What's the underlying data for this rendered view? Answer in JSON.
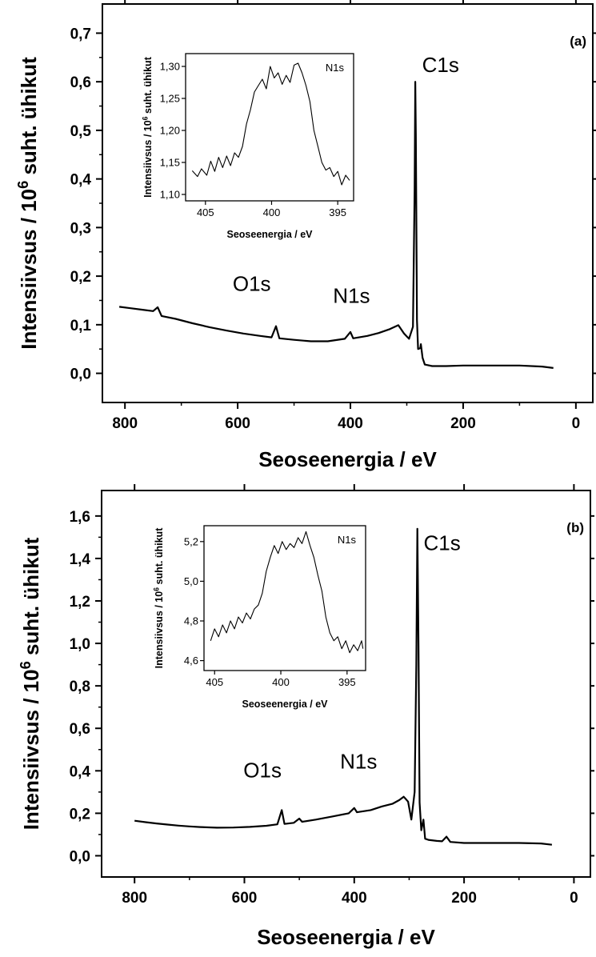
{
  "chart_data": [
    {
      "type": "line",
      "panel_label": "(a)",
      "xlabel": "Seoseenergia / eV",
      "ylabel": {
        "text": "Intensiivsus / 10",
        "sup": "6",
        "tail": " suht. ühikut"
      },
      "xlim": [
        840,
        -30
      ],
      "ylim": [
        -0.06,
        0.76
      ],
      "xticks": [
        800,
        600,
        400,
        200,
        0
      ],
      "xticklabels": [
        "800",
        "600",
        "400",
        "200",
        "0"
      ],
      "yticks": [
        0.0,
        0.1,
        0.2,
        0.3,
        0.4,
        0.5,
        0.6,
        0.7
      ],
      "yticklabels": [
        "0,0",
        "0,1",
        "0,2",
        "0,3",
        "0,4",
        "0,5",
        "0,6",
        "0,7"
      ],
      "annotations": [
        {
          "text": "C1s",
          "x": 240,
          "y": 0.62
        },
        {
          "text": "O1s",
          "x": 575,
          "y": 0.17
        },
        {
          "text": "N1s",
          "x": 398,
          "y": 0.145
        }
      ],
      "series": [
        {
          "points": [
            [
              810,
              0.137
            ],
            [
              790,
              0.134
            ],
            [
              770,
              0.131
            ],
            [
              750,
              0.128
            ],
            [
              742,
              0.136
            ],
            [
              735,
              0.118
            ],
            [
              710,
              0.112
            ],
            [
              680,
              0.103
            ],
            [
              650,
              0.095
            ],
            [
              620,
              0.088
            ],
            [
              590,
              0.082
            ],
            [
              560,
              0.077
            ],
            [
              540,
              0.074
            ],
            [
              532,
              0.097
            ],
            [
              526,
              0.072
            ],
            [
              500,
              0.069
            ],
            [
              470,
              0.066
            ],
            [
              440,
              0.066
            ],
            [
              410,
              0.071
            ],
            [
              400,
              0.085
            ],
            [
              395,
              0.072
            ],
            [
              370,
              0.077
            ],
            [
              350,
              0.083
            ],
            [
              330,
              0.091
            ],
            [
              315,
              0.099
            ],
            [
              305,
              0.082
            ],
            [
              296,
              0.071
            ],
            [
              289,
              0.096
            ],
            [
              286,
              0.38
            ],
            [
              285,
              0.6
            ],
            [
              284,
              0.49
            ],
            [
              282,
              0.11
            ],
            [
              280,
              0.05
            ],
            [
              276,
              0.052
            ],
            [
              275,
              0.06
            ],
            [
              272,
              0.032
            ],
            [
              268,
              0.018
            ],
            [
              255,
              0.015
            ],
            [
              230,
              0.015
            ],
            [
              200,
              0.016
            ],
            [
              150,
              0.016
            ],
            [
              100,
              0.016
            ],
            [
              60,
              0.014
            ],
            [
              40,
              0.011
            ]
          ]
        }
      ],
      "inset": {
        "label": "N1s",
        "xlabel": "Seoseenergia / eV",
        "ylabel": {
          "text": "Intensiivsus / 10",
          "sup": "6",
          "tail": " suht. ühikut"
        },
        "xlim": [
          406.5,
          393.8
        ],
        "ylim": [
          1.09,
          1.32
        ],
        "xticks": [
          405,
          400,
          395
        ],
        "xticklabels": [
          "405",
          "400",
          "395"
        ],
        "yticks": [
          1.1,
          1.15,
          1.2,
          1.25,
          1.3
        ],
        "yticklabels": [
          "1,10",
          "1,15",
          "1,20",
          "1,25",
          "1,30"
        ],
        "points": [
          [
            406,
            1.137
          ],
          [
            405.6,
            1.128
          ],
          [
            405.3,
            1.14
          ],
          [
            404.9,
            1.13
          ],
          [
            404.6,
            1.152
          ],
          [
            404.3,
            1.136
          ],
          [
            404.0,
            1.158
          ],
          [
            403.7,
            1.142
          ],
          [
            403.4,
            1.16
          ],
          [
            403.1,
            1.145
          ],
          [
            402.8,
            1.165
          ],
          [
            402.5,
            1.158
          ],
          [
            402.2,
            1.175
          ],
          [
            401.9,
            1.21
          ],
          [
            401.6,
            1.232
          ],
          [
            401.3,
            1.26
          ],
          [
            401.0,
            1.27
          ],
          [
            400.7,
            1.28
          ],
          [
            400.4,
            1.265
          ],
          [
            400.1,
            1.3
          ],
          [
            399.8,
            1.282
          ],
          [
            399.5,
            1.29
          ],
          [
            399.2,
            1.272
          ],
          [
            398.9,
            1.286
          ],
          [
            398.6,
            1.275
          ],
          [
            398.3,
            1.302
          ],
          [
            398.0,
            1.305
          ],
          [
            397.7,
            1.29
          ],
          [
            397.4,
            1.27
          ],
          [
            397.1,
            1.245
          ],
          [
            396.8,
            1.2
          ],
          [
            396.5,
            1.175
          ],
          [
            396.2,
            1.15
          ],
          [
            395.9,
            1.138
          ],
          [
            395.6,
            1.142
          ],
          [
            395.3,
            1.128
          ],
          [
            395.0,
            1.136
          ],
          [
            394.7,
            1.115
          ],
          [
            394.4,
            1.13
          ],
          [
            394.1,
            1.122
          ]
        ]
      }
    },
    {
      "type": "line",
      "panel_label": "(b)",
      "xlabel": "Seoseenergia / eV",
      "ylabel": {
        "text": "Intensiivsus / 10",
        "sup": "6",
        "tail": " suht. ühikut"
      },
      "xlim": [
        860,
        -30
      ],
      "ylim": [
        -0.1,
        1.72
      ],
      "xticks": [
        800,
        600,
        400,
        200,
        0
      ],
      "xticklabels": [
        "800",
        "600",
        "400",
        "200",
        "0"
      ],
      "yticks": [
        0.0,
        0.2,
        0.4,
        0.6,
        0.8,
        1.0,
        1.2,
        1.4,
        1.6
      ],
      "yticklabels": [
        "0,0",
        "0,2",
        "0,4",
        "0,6",
        "0,8",
        "1,0",
        "1,2",
        "1,4",
        "1,6"
      ],
      "annotations": [
        {
          "text": "C1s",
          "x": 240,
          "y": 1.44
        },
        {
          "text": "O1s",
          "x": 567,
          "y": 0.37
        },
        {
          "text": "N1s",
          "x": 392,
          "y": 0.41
        }
      ],
      "series": [
        {
          "points": [
            [
              800,
              0.165
            ],
            [
              780,
              0.158
            ],
            [
              760,
              0.152
            ],
            [
              740,
              0.147
            ],
            [
              720,
              0.142
            ],
            [
              700,
              0.138
            ],
            [
              680,
              0.135
            ],
            [
              650,
              0.132
            ],
            [
              620,
              0.133
            ],
            [
              590,
              0.136
            ],
            [
              560,
              0.141
            ],
            [
              540,
              0.148
            ],
            [
              532,
              0.215
            ],
            [
              527,
              0.15
            ],
            [
              510,
              0.155
            ],
            [
              500,
              0.175
            ],
            [
              495,
              0.16
            ],
            [
              470,
              0.17
            ],
            [
              440,
              0.185
            ],
            [
              410,
              0.2
            ],
            [
              400,
              0.225
            ],
            [
              395,
              0.205
            ],
            [
              370,
              0.215
            ],
            [
              350,
              0.232
            ],
            [
              330,
              0.245
            ],
            [
              318,
              0.262
            ],
            [
              310,
              0.278
            ],
            [
              302,
              0.255
            ],
            [
              296,
              0.17
            ],
            [
              290,
              0.3
            ],
            [
              287,
              0.9
            ],
            [
              285,
              1.54
            ],
            [
              283,
              1.0
            ],
            [
              281,
              0.25
            ],
            [
              278,
              0.12
            ],
            [
              274,
              0.17
            ],
            [
              271,
              0.08
            ],
            [
              265,
              0.075
            ],
            [
              250,
              0.07
            ],
            [
              240,
              0.068
            ],
            [
              232,
              0.09
            ],
            [
              225,
              0.065
            ],
            [
              200,
              0.06
            ],
            [
              150,
              0.06
            ],
            [
              100,
              0.06
            ],
            [
              60,
              0.058
            ],
            [
              40,
              0.052
            ]
          ]
        }
      ],
      "inset": {
        "label": "N1s",
        "xlabel": "Seoseenergia / eV",
        "ylabel": {
          "text": "Intensiivsus / 10",
          "sup": "6",
          "tail": " suht. ühikut"
        },
        "xlim": [
          405.8,
          393.6
        ],
        "ylim": [
          4.55,
          5.28
        ],
        "xticks": [
          405,
          400,
          395
        ],
        "xticklabels": [
          "405",
          "400",
          "395"
        ],
        "yticks": [
          4.6,
          4.8,
          5.0,
          5.2
        ],
        "yticklabels": [
          "4,6",
          "4,8",
          "5,0",
          "5,2"
        ],
        "points": [
          [
            405.3,
            4.7
          ],
          [
            405.0,
            4.76
          ],
          [
            404.7,
            4.72
          ],
          [
            404.4,
            4.78
          ],
          [
            404.1,
            4.74
          ],
          [
            403.8,
            4.8
          ],
          [
            403.5,
            4.76
          ],
          [
            403.2,
            4.82
          ],
          [
            402.9,
            4.79
          ],
          [
            402.6,
            4.84
          ],
          [
            402.3,
            4.81
          ],
          [
            402.0,
            4.86
          ],
          [
            401.7,
            4.88
          ],
          [
            401.4,
            4.94
          ],
          [
            401.1,
            5.05
          ],
          [
            400.8,
            5.12
          ],
          [
            400.5,
            5.18
          ],
          [
            400.2,
            5.14
          ],
          [
            399.9,
            5.2
          ],
          [
            399.6,
            5.16
          ],
          [
            399.3,
            5.19
          ],
          [
            399.0,
            5.17
          ],
          [
            398.7,
            5.22
          ],
          [
            398.4,
            5.19
          ],
          [
            398.1,
            5.25
          ],
          [
            397.8,
            5.18
          ],
          [
            397.5,
            5.12
          ],
          [
            397.2,
            5.03
          ],
          [
            396.9,
            4.95
          ],
          [
            396.6,
            4.82
          ],
          [
            396.3,
            4.74
          ],
          [
            396.0,
            4.7
          ],
          [
            395.7,
            4.72
          ],
          [
            395.4,
            4.66
          ],
          [
            395.1,
            4.7
          ],
          [
            394.8,
            4.64
          ],
          [
            394.5,
            4.68
          ],
          [
            394.2,
            4.65
          ],
          [
            393.9,
            4.7
          ],
          [
            393.8,
            4.66
          ]
        ]
      }
    }
  ]
}
